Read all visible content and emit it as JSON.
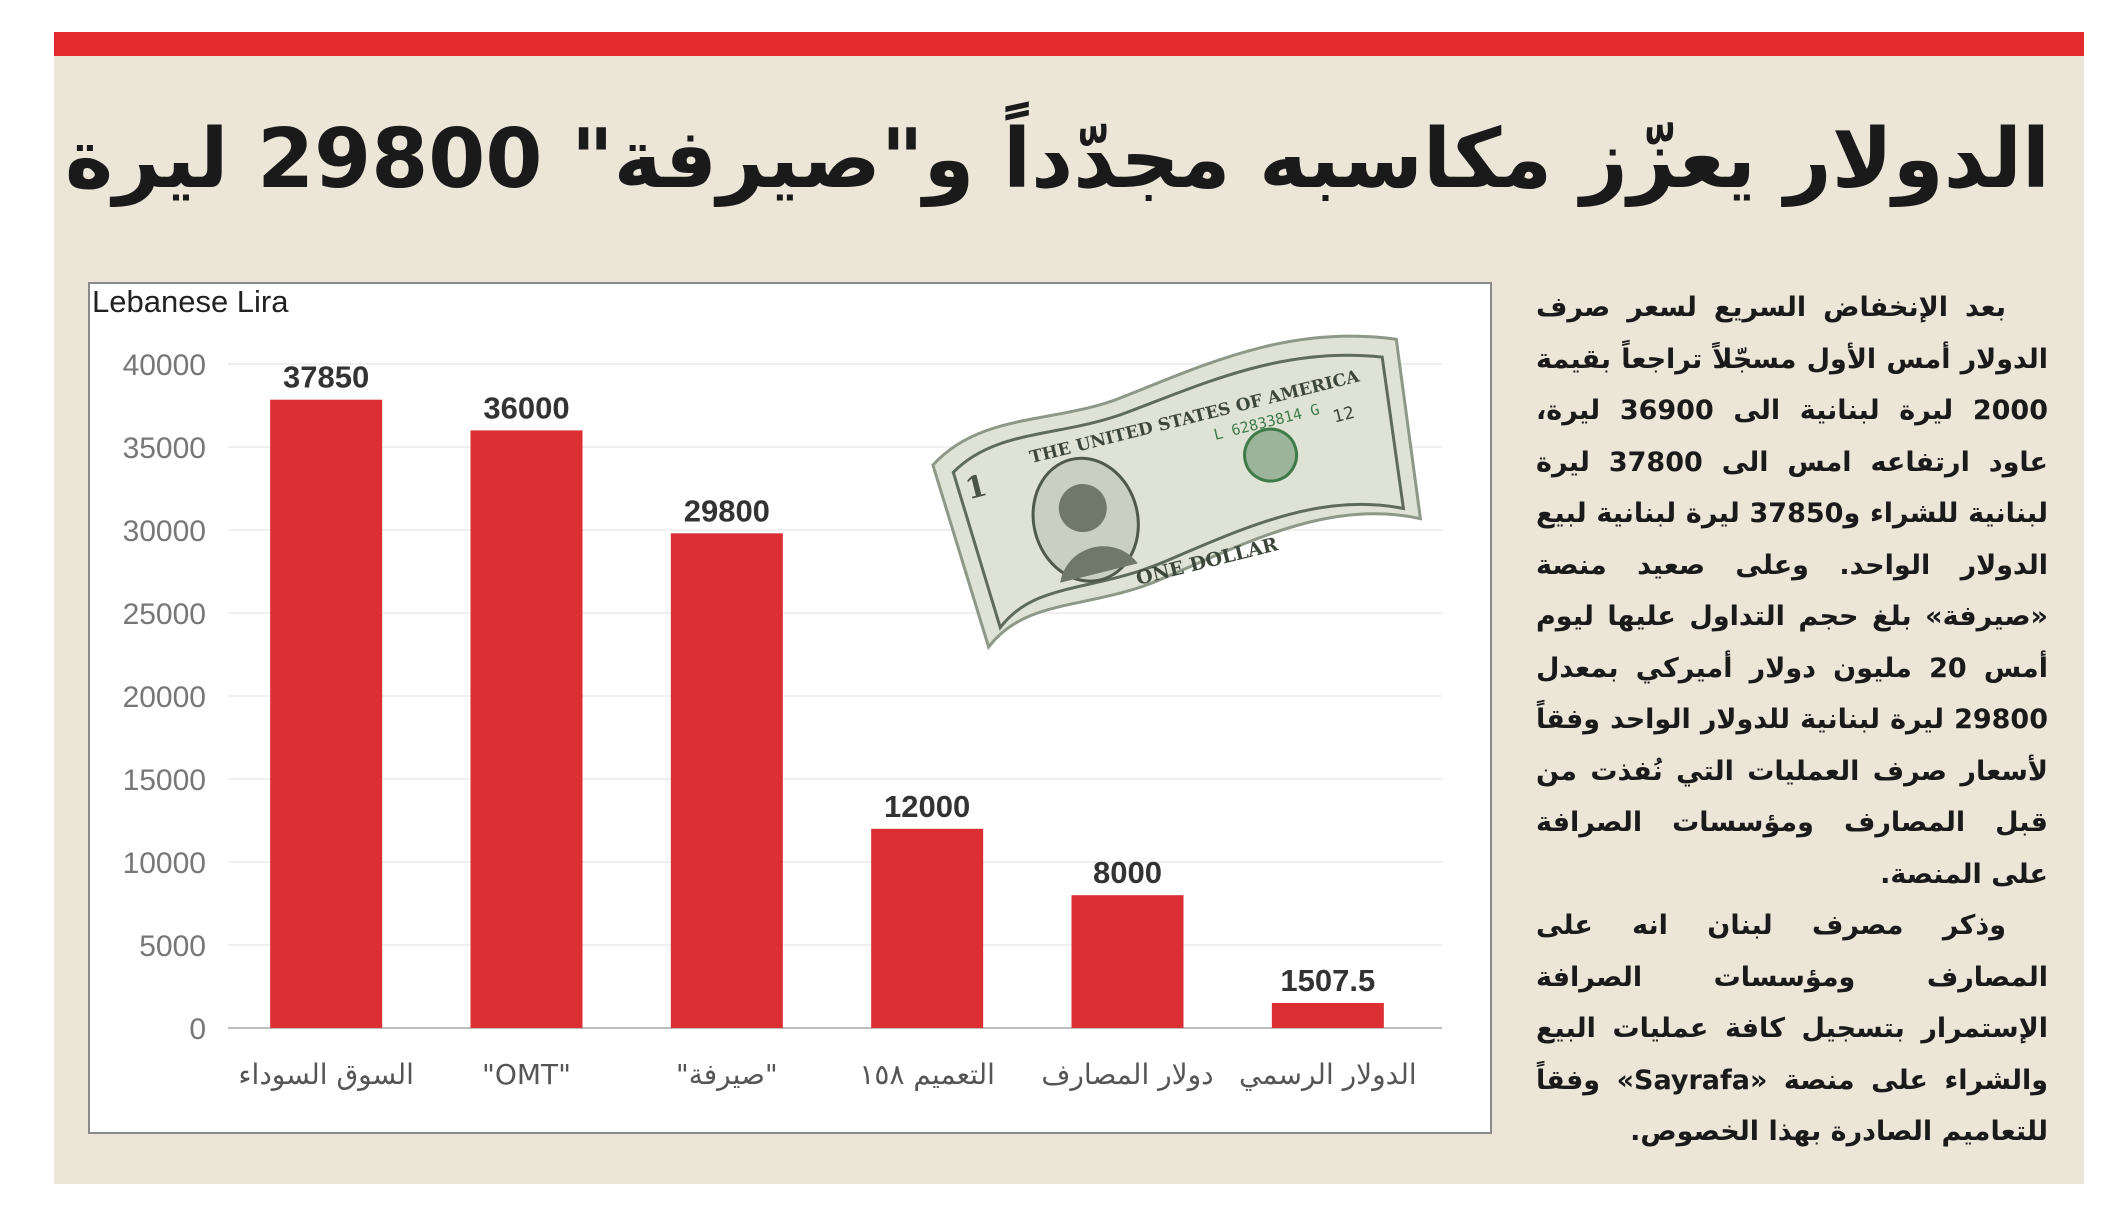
{
  "headline": "الدولار يعزّز مكاسبه مجدّداً و\"صيرفة\" 29800 ليرة",
  "article": {
    "paragraphs": [
      "بعد الإنخفاض السريع لسعر صرف الدولار أمس الأول مسجّلاً تراجعاً بقيمة 2000 ليرة لبنانية الى 36900 ليرة، عاود ارتفاعه امس الى 37800 ليرة لبنانية للشراء و37850 ليرة لبنانية لبيع الدولار الواحد. وعلى صعيد منصة «صيرفة» بلغ حجم التداول عليها ليوم أمس 20 مليون دولار أميركي بمعدل 29800 ليرة لبنانية للدولار الواحد وفقاً لأسعار صرف العمليات التي نُفذت من قبل المصارف ومؤسسات الصرافة على المنصة.",
      "وذكر مصرف لبنان انه على المصارف ومؤسسات الصرافة الإستمرار بتسجيل كافة عمليات البيع والشراء على منصة «Sayrafa» وفقاً للتعاميم الصادرة بهذا الخصوص."
    ]
  },
  "colors": {
    "accent": "#e32b2f",
    "bar": "#dc2f33",
    "panel_bg": "#ece6d9"
  },
  "image": {
    "icon": "dollar-bill-image",
    "bill_texts": [
      "THE UNITED STATES OF AMERICA",
      "L 62833814 G",
      "ONE DOLLAR",
      "12",
      "1"
    ]
  },
  "chart_data": {
    "type": "bar",
    "ylabel": "Lebanese Lira",
    "xlabel": "",
    "ylim": [
      0,
      40000
    ],
    "yticks": [
      0,
      5000,
      10000,
      15000,
      20000,
      25000,
      30000,
      35000,
      40000
    ],
    "grid": true,
    "categories": [
      "السوق السوداء",
      "\"OMT\"",
      "\"صيرفة\"",
      "التعميم ١٥٨",
      "دولار المصارف",
      "الدولار الرسمي"
    ],
    "values": [
      37850,
      36000,
      29800,
      12000,
      8000,
      1507.5
    ],
    "value_labels": [
      "37850",
      "36000",
      "29800",
      "12000",
      "8000",
      "1507.5"
    ]
  }
}
